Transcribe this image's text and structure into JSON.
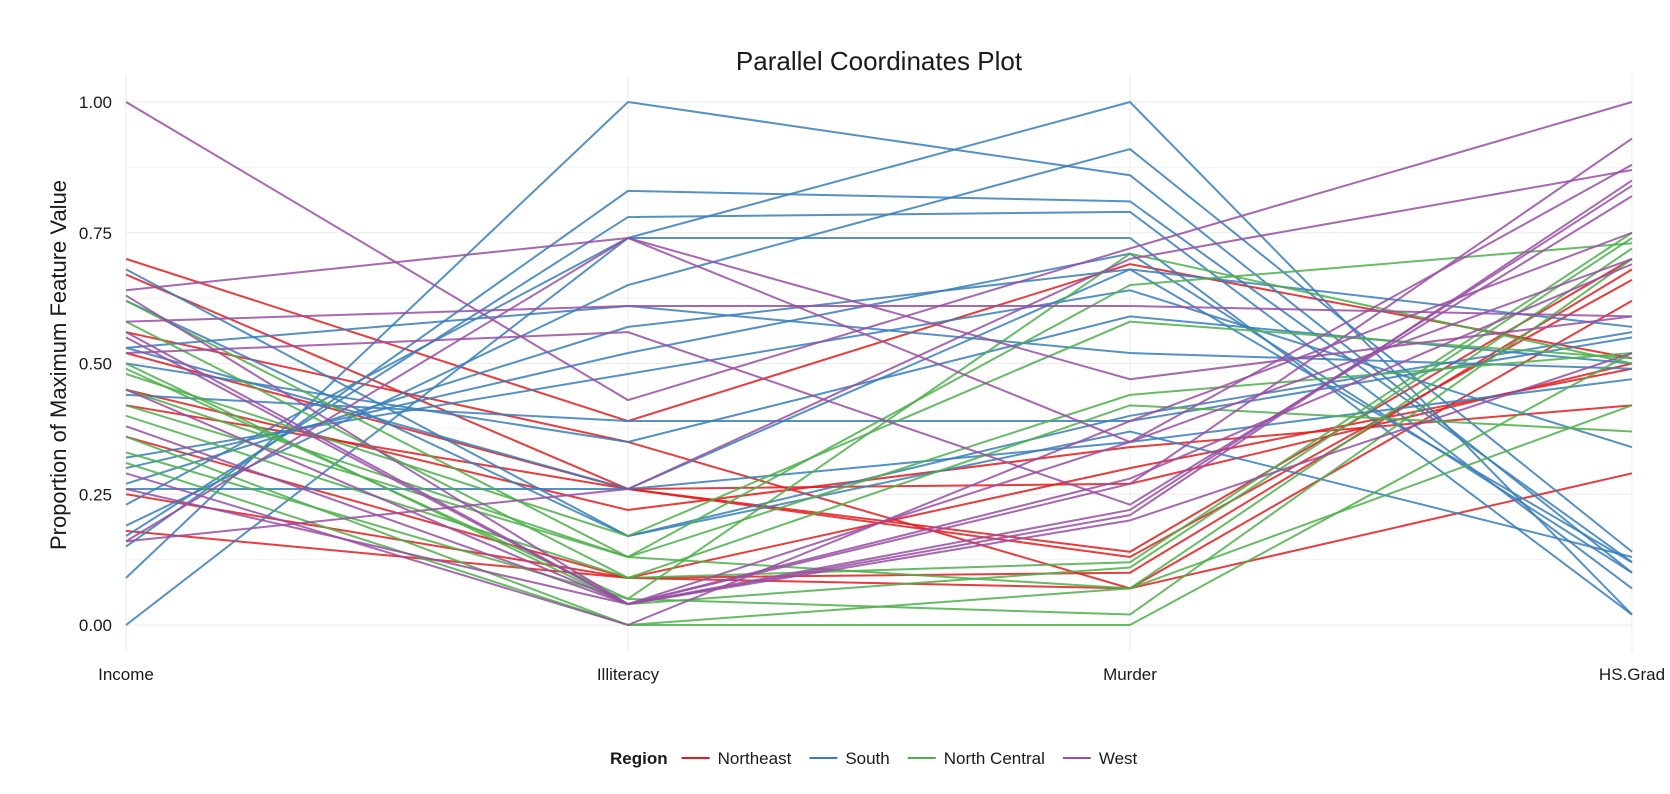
{
  "chart_data": {
    "type": "line",
    "subtype": "parallel-coordinates",
    "title": "Parallel Coordinates Plot",
    "ylabel": "Proportion of Maximum Feature Value",
    "xlabel": "",
    "ylim": [
      0,
      1
    ],
    "yticks": [
      {
        "value": 0.0,
        "label": "0.00"
      },
      {
        "value": 0.25,
        "label": "0.25"
      },
      {
        "value": 0.5,
        "label": "0.50"
      },
      {
        "value": 0.75,
        "label": "0.75"
      },
      {
        "value": 1.0,
        "label": "1.00"
      }
    ],
    "axes": [
      "Income",
      "Illiteracy",
      "Murder",
      "HS.Grad"
    ],
    "grid": true,
    "legend": {
      "title": "Region",
      "position": "bottom",
      "entries": [
        {
          "name": "Northeast",
          "color": "#e41a1c"
        },
        {
          "name": "South",
          "color": "#377eb8"
        },
        {
          "name": "North Central",
          "color": "#4daf4a"
        },
        {
          "name": "West",
          "color": "#984ea3"
        }
      ]
    },
    "series": [
      {
        "region": "Northeast",
        "values": [
          0.7,
          0.39,
          0.69,
          0.51
        ]
      },
      {
        "region": "Northeast",
        "values": [
          0.67,
          0.26,
          0.14,
          0.7
        ]
      },
      {
        "region": "Northeast",
        "values": [
          0.56,
          0.35,
          0.07,
          0.62
        ]
      },
      {
        "region": "Northeast",
        "values": [
          0.52,
          0.26,
          0.27,
          0.5
        ]
      },
      {
        "region": "Northeast",
        "values": [
          0.45,
          0.22,
          0.34,
          0.42
        ]
      },
      {
        "region": "Northeast",
        "values": [
          0.42,
          0.26,
          0.13,
          0.66
        ]
      },
      {
        "region": "Northeast",
        "values": [
          0.36,
          0.09,
          0.1,
          0.68
        ]
      },
      {
        "region": "Northeast",
        "values": [
          0.25,
          0.09,
          0.3,
          0.49
        ]
      },
      {
        "region": "Northeast",
        "values": [
          0.18,
          0.09,
          0.07,
          0.29
        ]
      },
      {
        "region": "South",
        "values": [
          0.0,
          0.74,
          0.74,
          0.02
        ]
      },
      {
        "region": "South",
        "values": [
          0.09,
          1.0,
          0.86,
          0.1
        ]
      },
      {
        "region": "South",
        "values": [
          0.15,
          0.83,
          0.81,
          0.12
        ]
      },
      {
        "region": "South",
        "values": [
          0.17,
          0.78,
          0.79,
          0.07
        ]
      },
      {
        "region": "South",
        "values": [
          0.19,
          0.65,
          0.91,
          0.14
        ]
      },
      {
        "region": "South",
        "values": [
          0.23,
          0.74,
          1.0,
          0.02
        ]
      },
      {
        "region": "South",
        "values": [
          0.27,
          0.57,
          0.68,
          0.12
        ]
      },
      {
        "region": "South",
        "values": [
          0.3,
          0.52,
          0.71,
          0.1
        ]
      },
      {
        "region": "South",
        "values": [
          0.32,
          0.48,
          0.64,
          0.34
        ]
      },
      {
        "region": "South",
        "values": [
          0.44,
          0.39,
          0.39,
          0.55
        ]
      },
      {
        "region": "South",
        "values": [
          0.5,
          0.35,
          0.59,
          0.5
        ]
      },
      {
        "region": "South",
        "values": [
          0.53,
          0.61,
          0.52,
          0.49
        ]
      },
      {
        "region": "South",
        "values": [
          0.53,
          0.26,
          0.35,
          0.47
        ]
      },
      {
        "region": "South",
        "values": [
          0.62,
          0.17,
          0.4,
          0.56
        ]
      },
      {
        "region": "South",
        "values": [
          0.68,
          0.17,
          0.37,
          0.13
        ]
      },
      {
        "region": "South",
        "values": [
          0.26,
          0.26,
          0.68,
          0.57
        ]
      },
      {
        "region": "North Central",
        "values": [
          0.62,
          0.13,
          0.44,
          0.52
        ]
      },
      {
        "region": "North Central",
        "values": [
          0.58,
          0.09,
          0.42,
          0.37
        ]
      },
      {
        "region": "North Central",
        "values": [
          0.49,
          0.05,
          0.71,
          0.5
        ]
      },
      {
        "region": "North Central",
        "values": [
          0.48,
          0.17,
          0.58,
          0.51
        ]
      },
      {
        "region": "North Central",
        "values": [
          0.45,
          0.13,
          0.65,
          0.73
        ]
      },
      {
        "region": "North Central",
        "values": [
          0.4,
          0.09,
          0.12,
          0.75
        ]
      },
      {
        "region": "North Central",
        "values": [
          0.36,
          0.0,
          0.07,
          0.72
        ]
      },
      {
        "region": "North Central",
        "values": [
          0.33,
          0.05,
          0.02,
          0.7
        ]
      },
      {
        "region": "North Central",
        "values": [
          0.31,
          0.0,
          0.0,
          0.52
        ]
      },
      {
        "region": "North Central",
        "values": [
          0.42,
          0.13,
          0.07,
          0.42
        ]
      },
      {
        "region": "North Central",
        "values": [
          0.5,
          0.04,
          0.11,
          0.74
        ]
      },
      {
        "region": "West",
        "values": [
          1.0,
          0.43,
          0.72,
          1.0
        ]
      },
      {
        "region": "West",
        "values": [
          0.58,
          0.61,
          0.61,
          0.59
        ]
      },
      {
        "region": "West",
        "values": [
          0.64,
          0.74,
          0.47,
          0.59
        ]
      },
      {
        "region": "West",
        "values": [
          0.63,
          0.04,
          0.27,
          0.93
        ]
      },
      {
        "region": "West",
        "values": [
          0.55,
          0.04,
          0.35,
          0.88
        ]
      },
      {
        "region": "West",
        "values": [
          0.52,
          0.56,
          0.23,
          0.82
        ]
      },
      {
        "region": "West",
        "values": [
          0.45,
          0.04,
          0.21,
          0.85
        ]
      },
      {
        "region": "West",
        "values": [
          0.38,
          0.04,
          0.22,
          0.84
        ]
      },
      {
        "region": "West",
        "values": [
          0.29,
          0.0,
          0.39,
          0.75
        ]
      },
      {
        "region": "West",
        "values": [
          0.26,
          0.04,
          0.28,
          0.69
        ]
      },
      {
        "region": "West",
        "values": [
          0.16,
          0.74,
          0.35,
          0.7
        ]
      },
      {
        "region": "West",
        "values": [
          0.16,
          0.26,
          0.7,
          0.87
        ]
      },
      {
        "region": "West",
        "values": [
          0.56,
          0.04,
          0.2,
          0.52
        ]
      }
    ]
  }
}
